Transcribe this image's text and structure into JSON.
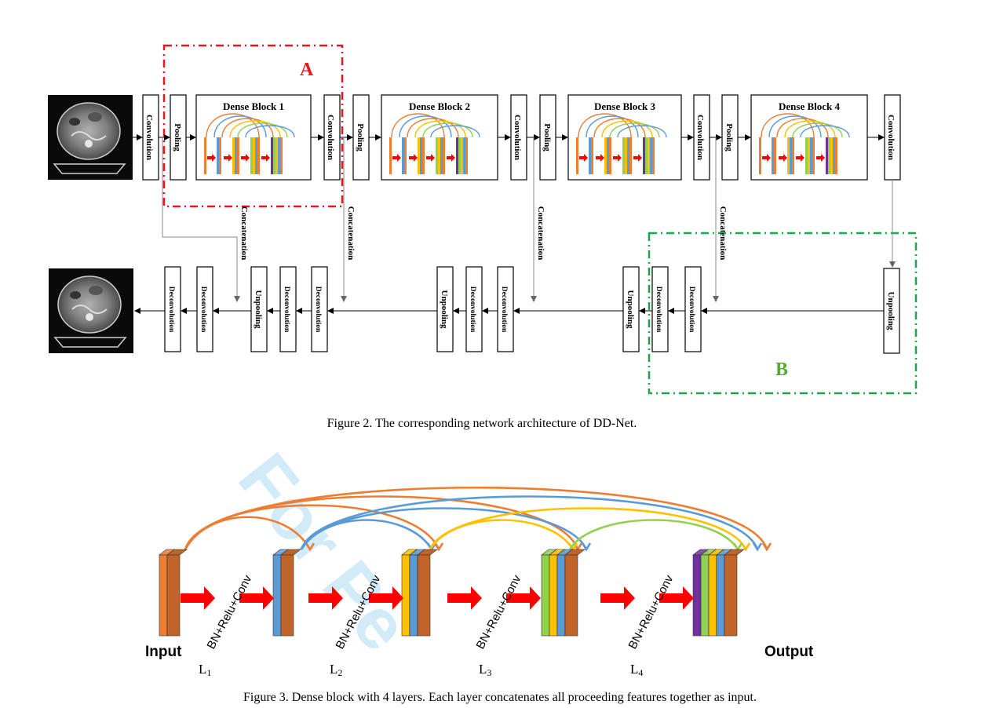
{
  "watermark": "For Pe",
  "figure2": {
    "caption": "Figure 2. The corresponding network architecture of DD-Net.",
    "region_a": "A",
    "region_b": "B",
    "top_row": {
      "convolution": "Convolution",
      "pooling": "Pooling",
      "dense_blocks": [
        "Dense Block 1",
        "Dense Block 2",
        "Dense Block 3",
        "Dense Block 4"
      ]
    },
    "bottom_row": {
      "deconvolution": "Deconvolution",
      "unpooling": "Unpooling"
    },
    "concatenation": "Concatenation"
  },
  "figure3": {
    "caption": "Figure 3. Dense block with 4 layers. Each layer concatenates all proceeding features together as input.",
    "input_label": "Input",
    "output_label": "Output",
    "op_label": "BN+Relu+Conv",
    "layers": [
      "L1",
      "L2",
      "L3",
      "L4"
    ],
    "colors": {
      "orange": "#ed7d31",
      "blue": "#5b9bd5",
      "yellow": "#ffc000",
      "green": "#92d050",
      "purple": "#7030a0",
      "red": "#ff0000"
    }
  }
}
